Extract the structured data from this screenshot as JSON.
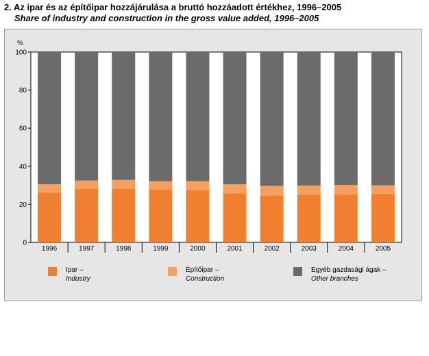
{
  "title_hu": "2. Az ipar és az építőipar hozzájárulása a bruttó hozzáadott értékhez, 1996–2005",
  "title_en": "Share of industry and construction in the gross value added, 1996–2005",
  "chart_data": {
    "type": "bar",
    "stacked": true,
    "title": "2. Az ipar és az építőipar hozzájárulása a bruttó hozzáadott értékhez, 1996–2005",
    "subtitle": "Share of industry and construction in the gross value added, 1996–2005",
    "ylabel": "%",
    "xlabel": "",
    "ylim": [
      0,
      100
    ],
    "yticks": [
      0,
      20,
      40,
      60,
      80,
      100
    ],
    "grid": false,
    "legend_position": "bottom",
    "categories": [
      "1996",
      "1997",
      "1998",
      "1999",
      "2000",
      "2001",
      "2002",
      "2003",
      "2004",
      "2005"
    ],
    "series": [
      {
        "name": "Ipar – Industry",
        "label_hu": "Ipar –",
        "label_en": "Industry",
        "color": "#f07f2f",
        "values": [
          26.2,
          28.2,
          28.2,
          27.8,
          27.5,
          25.7,
          24.6,
          25.0,
          25.2,
          25.4
        ]
      },
      {
        "name": "Építőipar – Construction",
        "label_hu": "Építőipar –",
        "label_en": "Construction",
        "color": "#f5a060",
        "values": [
          4.3,
          4.3,
          4.6,
          4.4,
          4.7,
          4.8,
          5.1,
          4.8,
          5.0,
          4.6
        ]
      },
      {
        "name": "Egyéb gazdasági ágak – Other branches",
        "label_hu": "Egyéb gazdasági ágak –",
        "label_en": "Other branches",
        "color": "#6b6b6b",
        "values": [
          69.5,
          67.5,
          67.2,
          67.8,
          67.8,
          69.5,
          70.3,
          70.2,
          69.8,
          70.0
        ]
      }
    ]
  }
}
